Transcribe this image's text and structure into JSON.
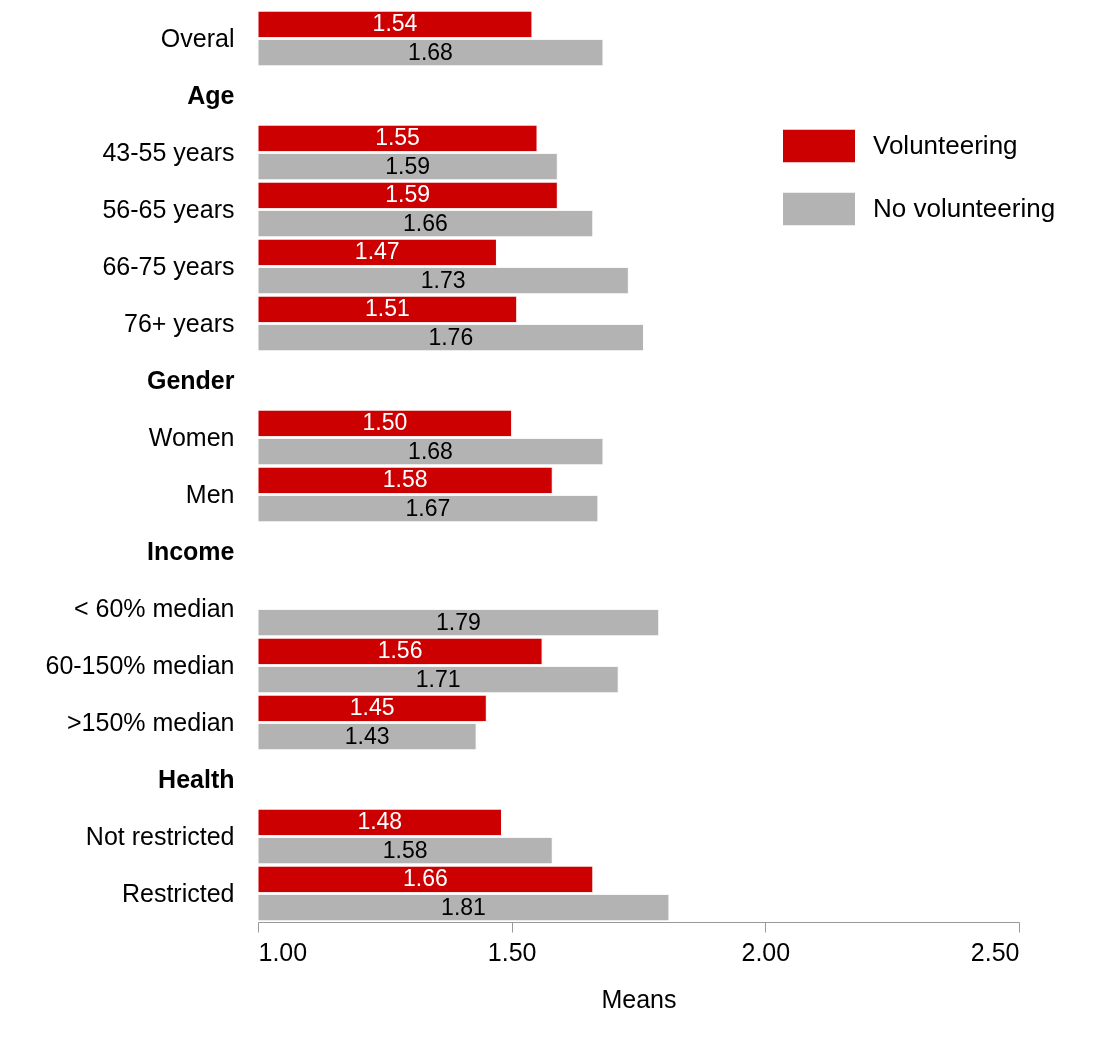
{
  "chart_data": {
    "type": "bar",
    "orientation": "horizontal",
    "xlabel": "Means",
    "categories": [
      "Overal",
      "Age",
      "43-55 years",
      "56-65 years",
      "66-75 years",
      "76+ years",
      "Gender",
      "Women",
      "Men",
      "Income",
      "< 60% median",
      "60-150% median",
      ">150% median",
      "Health",
      "Not restricted",
      "Restricted"
    ],
    "series": [
      {
        "name": "Volunteering",
        "color": "#cc0000",
        "values": [
          1.54,
          null,
          1.55,
          1.59,
          1.47,
          1.51,
          null,
          1.5,
          1.58,
          null,
          null,
          1.56,
          1.45,
          null,
          1.48,
          1.66
        ],
        "value_labels": [
          "1.54",
          null,
          "1.55",
          "1.59",
          "1.47",
          "1.51",
          null,
          "1.50",
          "1.58",
          null,
          null,
          "1.56",
          "1.45",
          null,
          "1.48",
          "1.66"
        ]
      },
      {
        "name": "No volunteering",
        "color": "#b3b3b3",
        "values": [
          1.68,
          null,
          1.59,
          1.66,
          1.73,
          1.76,
          null,
          1.68,
          1.67,
          null,
          1.79,
          1.71,
          1.43,
          null,
          1.58,
          1.81
        ],
        "value_labels": [
          "1.68",
          null,
          "1.59",
          "1.66",
          "1.73",
          "1.76",
          null,
          "1.68",
          "1.67",
          null,
          "1.79",
          "1.71",
          "1.43",
          null,
          "1.58",
          "1.81"
        ]
      }
    ],
    "xlim": [
      1.0,
      2.5
    ],
    "xticks": [
      {
        "value": 1.0,
        "label": "1.00"
      },
      {
        "value": 1.5,
        "label": "1.50"
      },
      {
        "value": 2.0,
        "label": "2.00"
      },
      {
        "value": 2.5,
        "label": "2.50"
      }
    ],
    "legend": "top right",
    "grid": false
  }
}
